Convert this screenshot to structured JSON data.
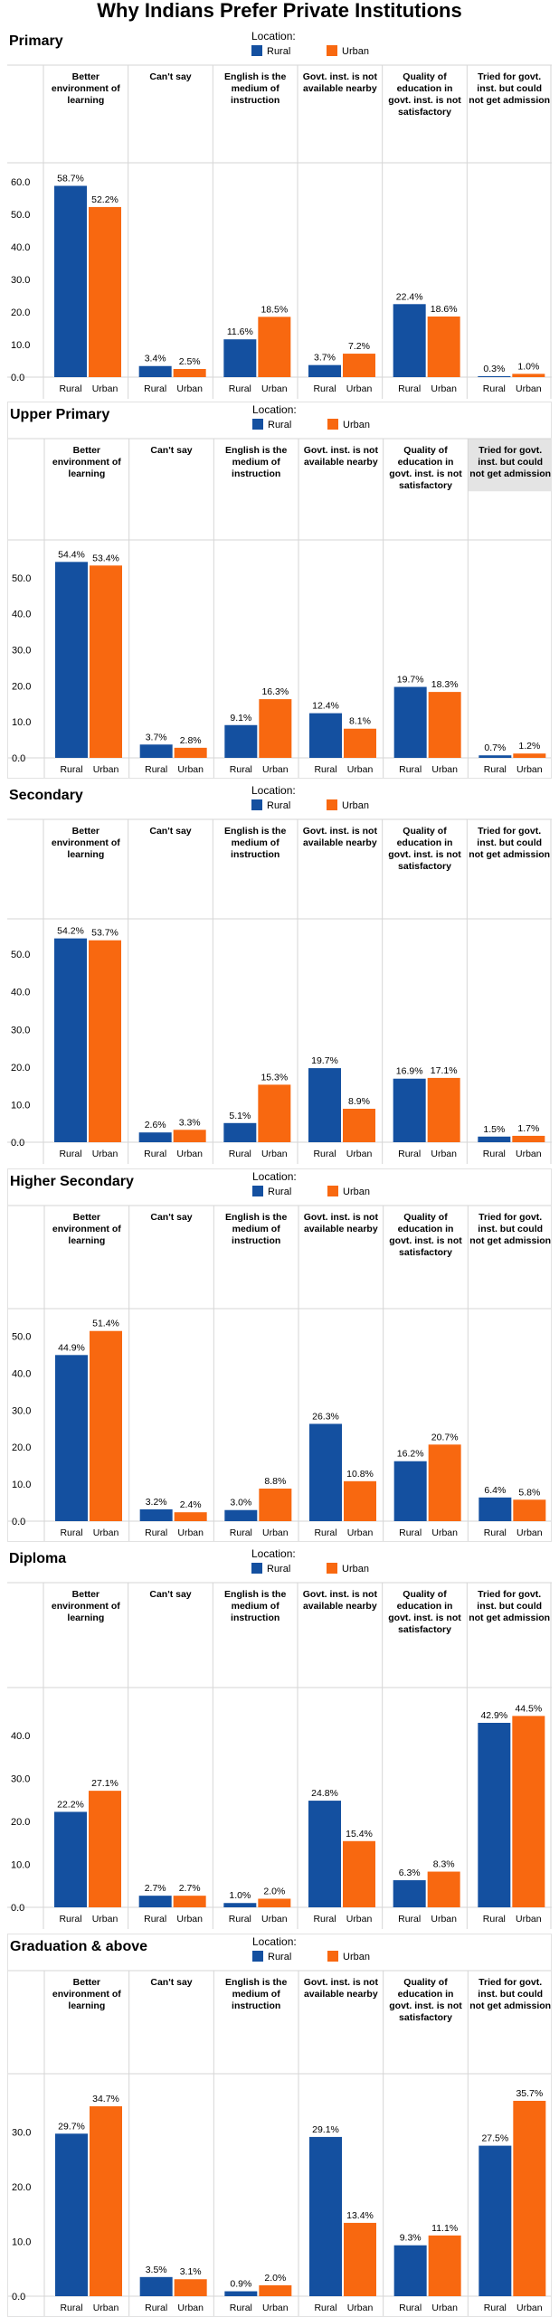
{
  "title": "Why Indians Prefer Private Institutions",
  "colors": {
    "rural": "#1450a0",
    "urban": "#f86810",
    "grid": "#d6d6d6",
    "header_highlight": "#e4e4e4"
  },
  "legend": {
    "caption": "Location:",
    "items": [
      "Rural",
      "Urban"
    ]
  },
  "chart_data": [
    {
      "type": "bar",
      "title": "Primary",
      "categories": [
        "Better environment of learning",
        "Can't say",
        "English is the medium of instruction",
        "Govt. inst. is not available nearby",
        "Quality of education in govt. inst. is not satisfactory",
        "Tried for govt. inst. but could not get admission"
      ],
      "header_lines": [
        [
          "Better",
          "environment of",
          "learning"
        ],
        [
          "Can't say"
        ],
        [
          "English is the",
          "medium of",
          "instruction"
        ],
        [
          "Govt. inst. is not",
          "available nearby"
        ],
        [
          "Quality of",
          "education in",
          "govt. inst. is not",
          "satisfactory"
        ],
        [
          "Tried for govt.",
          "inst. but could",
          "not get admission"
        ]
      ],
      "sub_categories": [
        "Rural",
        "Urban"
      ],
      "series": [
        {
          "name": "Rural",
          "values": [
            58.7,
            3.4,
            11.6,
            3.7,
            22.4,
            0.3
          ]
        },
        {
          "name": "Urban",
          "values": [
            52.2,
            2.5,
            18.5,
            7.2,
            18.6,
            1.0
          ]
        }
      ],
      "value_labels": [
        [
          "58.7%",
          "52.2%"
        ],
        [
          "3.4%",
          "2.5%"
        ],
        [
          "11.6%",
          "18.5%"
        ],
        [
          "3.7%",
          "7.2%"
        ],
        [
          "22.4%",
          "18.6%"
        ],
        [
          "0.3%",
          "1.0%"
        ]
      ],
      "yticks": [
        "60.0",
        "50.0",
        "40.0",
        "30.0",
        "20.0",
        "10.0",
        "0.0"
      ],
      "ylim": [
        0,
        63
      ],
      "highlight_column": -1
    },
    {
      "type": "bar",
      "title": "Upper Primary",
      "categories": [
        "Better environment of learning",
        "Can't say",
        "English is the medium of instruction",
        "Govt. inst. is not available nearby",
        "Quality of education in govt. inst. is not satisfactory",
        "Tried for govt. inst. but could not get admission"
      ],
      "header_lines": [
        [
          "Better",
          "environment of",
          "learning"
        ],
        [
          "Can't say"
        ],
        [
          "English is the",
          "medium of",
          "instruction"
        ],
        [
          "Govt. inst. is not",
          "available nearby"
        ],
        [
          "Quality of",
          "education in",
          "govt. inst. is not",
          "satisfactory"
        ],
        [
          "Tried for govt.",
          "inst. but could",
          "not get admission"
        ]
      ],
      "sub_categories": [
        "Rural",
        "Urban"
      ],
      "series": [
        {
          "name": "Rural",
          "values": [
            54.4,
            3.7,
            9.1,
            12.4,
            19.7,
            0.7
          ]
        },
        {
          "name": "Urban",
          "values": [
            53.4,
            2.8,
            16.3,
            8.1,
            18.3,
            1.2
          ]
        }
      ],
      "value_labels": [
        [
          "54.4%",
          "53.4%"
        ],
        [
          "3.7%",
          "2.8%"
        ],
        [
          "9.1%",
          "16.3%"
        ],
        [
          "12.4%",
          "8.1%"
        ],
        [
          "19.7%",
          "18.3%"
        ],
        [
          "0.7%",
          "1.2%"
        ]
      ],
      "yticks": [
        "50.0",
        "40.0",
        "30.0",
        "20.0",
        "10.0",
        "0.0"
      ],
      "ylim": [
        0,
        58
      ],
      "highlight_column": 5
    },
    {
      "type": "bar",
      "title": "Secondary",
      "categories": [
        "Better environment of learning",
        "Can't say",
        "English is the medium of instruction",
        "Govt. inst. is not available nearby",
        "Quality of education in govt. inst. is not satisfactory",
        "Tried for govt. inst. but could not get admission"
      ],
      "header_lines": [
        [
          "Better",
          "environment of",
          "learning"
        ],
        [
          "Can't say"
        ],
        [
          "English is the",
          "medium of",
          "instruction"
        ],
        [
          "Govt. inst. is not",
          "available nearby"
        ],
        [
          "Quality of",
          "education in",
          "govt. inst. is not",
          "satisfactory"
        ],
        [
          "Tried for govt.",
          "inst. but could",
          "not get admission"
        ]
      ],
      "sub_categories": [
        "Rural",
        "Urban"
      ],
      "series": [
        {
          "name": "Rural",
          "values": [
            54.2,
            2.6,
            5.1,
            19.7,
            16.9,
            1.5
          ]
        },
        {
          "name": "Urban",
          "values": [
            53.7,
            3.3,
            15.3,
            8.9,
            17.1,
            1.7
          ]
        }
      ],
      "value_labels": [
        [
          "54.2%",
          "53.7%"
        ],
        [
          "2.6%",
          "3.3%"
        ],
        [
          "5.1%",
          "15.3%"
        ],
        [
          "19.7%",
          "8.9%"
        ],
        [
          "16.9%",
          "17.1%"
        ],
        [
          "1.5%",
          "1.7%"
        ]
      ],
      "yticks": [
        "50.0",
        "40.0",
        "30.0",
        "20.0",
        "10.0",
        "0.0"
      ],
      "ylim": [
        0,
        57
      ],
      "highlight_column": -1
    },
    {
      "type": "bar",
      "title": "Higher Secondary",
      "categories": [
        "Better environment of learning",
        "Can't say",
        "English is the medium of instruction",
        "Govt. inst. is not available nearby",
        "Quality of education in govt. inst. is not satisfactory",
        "Tried for govt. inst. but could not get admission"
      ],
      "header_lines": [
        [
          "Better",
          "environment of",
          "learning"
        ],
        [
          "Can't say"
        ],
        [
          "English is the",
          "medium of",
          "instruction"
        ],
        [
          "Govt. inst. is not",
          "available nearby"
        ],
        [
          "Quality of",
          "education in",
          "govt. inst. is not",
          "satisfactory"
        ],
        [
          "Tried for govt.",
          "inst. but could",
          "not get admission"
        ]
      ],
      "sub_categories": [
        "Rural",
        "Urban"
      ],
      "series": [
        {
          "name": "Rural",
          "values": [
            44.9,
            3.2,
            3.0,
            26.3,
            16.2,
            6.4
          ]
        },
        {
          "name": "Urban",
          "values": [
            51.4,
            2.4,
            8.8,
            10.8,
            20.7,
            5.8
          ]
        }
      ],
      "value_labels": [
        [
          "44.9%",
          "51.4%"
        ],
        [
          "3.2%",
          "2.4%"
        ],
        [
          "3.0%",
          "8.8%"
        ],
        [
          "26.3%",
          "10.8%"
        ],
        [
          "16.2%",
          "20.7%"
        ],
        [
          "6.4%",
          "5.8%"
        ]
      ],
      "yticks": [
        "50.0",
        "40.0",
        "30.0",
        "20.0",
        "10.0",
        "0.0"
      ],
      "ylim": [
        0,
        55
      ],
      "highlight_column": -1
    },
    {
      "type": "bar",
      "title": "Diploma",
      "categories": [
        "Better environment of learning",
        "Can't say",
        "English is the medium of instruction",
        "Govt. inst. is not available nearby",
        "Quality of education in govt. inst. is not satisfactory",
        "Tried for govt. inst. but could not get admission"
      ],
      "header_lines": [
        [
          "Better",
          "environment of",
          "learning"
        ],
        [
          "Can't say"
        ],
        [
          "English is the",
          "medium of",
          "instruction"
        ],
        [
          "Govt. inst. is not",
          "available nearby"
        ],
        [
          "Quality of",
          "education in",
          "govt. inst. is not",
          "satisfactory"
        ],
        [
          "Tried for govt.",
          "inst. but could",
          "not get admission"
        ]
      ],
      "sub_categories": [
        "Rural",
        "Urban"
      ],
      "series": [
        {
          "name": "Rural",
          "values": [
            22.2,
            2.7,
            1.0,
            24.8,
            6.3,
            42.9
          ]
        },
        {
          "name": "Urban",
          "values": [
            27.1,
            2.7,
            2.0,
            15.4,
            8.3,
            44.5
          ]
        }
      ],
      "value_labels": [
        [
          "22.2%",
          "27.1%"
        ],
        [
          "2.7%",
          "2.7%"
        ],
        [
          "1.0%",
          "2.0%"
        ],
        [
          "24.8%",
          "15.4%"
        ],
        [
          "6.3%",
          "8.3%"
        ],
        [
          "42.9%",
          "44.5%"
        ]
      ],
      "yticks": [
        "40.0",
        "30.0",
        "20.0",
        "10.0",
        "0.0"
      ],
      "ylim": [
        0,
        49
      ],
      "highlight_column": -1
    },
    {
      "type": "bar",
      "title": "Graduation & above",
      "categories": [
        "Better environment of learning",
        "Can't say",
        "English is the medium of instruction",
        "Govt. inst. is not available nearby",
        "Quality of education in govt. inst. is not satisfactory",
        "Tried for govt. inst. but could not get admission"
      ],
      "header_lines": [
        [
          "Better",
          "environment of",
          "learning"
        ],
        [
          "Can't say"
        ],
        [
          "English is the",
          "medium of",
          "instruction"
        ],
        [
          "Govt. inst. is not",
          "available nearby"
        ],
        [
          "Quality of",
          "education in",
          "govt. inst. is not",
          "satisfactory"
        ],
        [
          "Tried for govt.",
          "inst. but could",
          "not get admission"
        ]
      ],
      "sub_categories": [
        "Rural",
        "Urban"
      ],
      "series": [
        {
          "name": "Rural",
          "values": [
            29.7,
            3.5,
            0.9,
            29.1,
            9.3,
            27.5
          ]
        },
        {
          "name": "Urban",
          "values": [
            34.7,
            3.1,
            2.0,
            13.4,
            11.1,
            35.7
          ]
        }
      ],
      "value_labels": [
        [
          "29.7%",
          "34.7%"
        ],
        [
          "3.5%",
          "3.1%"
        ],
        [
          "0.9%",
          "2.0%"
        ],
        [
          "29.1%",
          "13.4%"
        ],
        [
          "9.3%",
          "11.1%"
        ],
        [
          "27.5%",
          "35.7%"
        ]
      ],
      "yticks": [
        "30.0",
        "20.0",
        "10.0",
        "0.0"
      ],
      "ylim": [
        0,
        39
      ],
      "highlight_column": -1
    }
  ]
}
